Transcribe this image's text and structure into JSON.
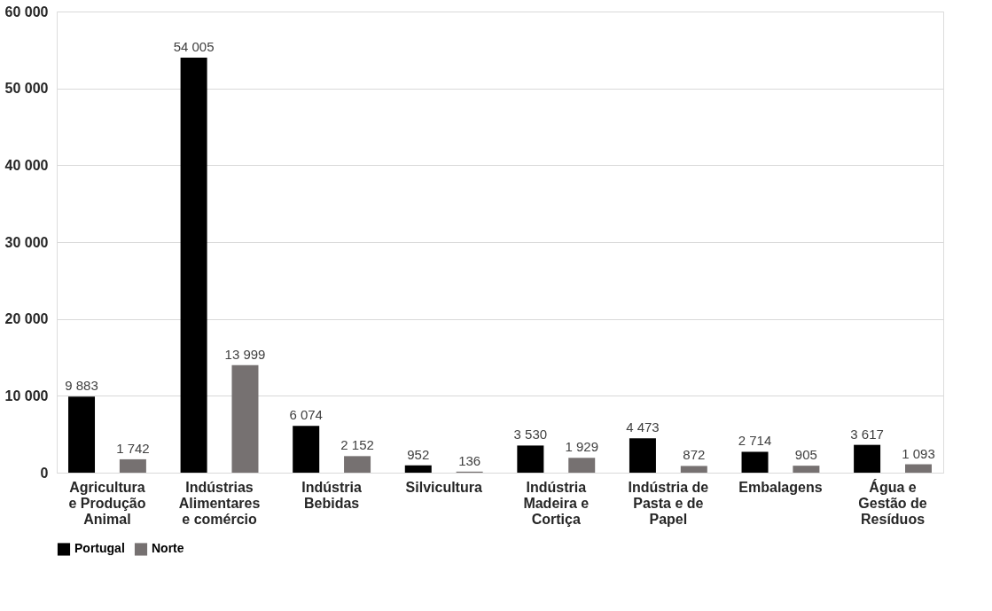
{
  "chart_data": {
    "type": "bar",
    "categories": [
      "Agricultura e Produção Animal",
      "Indústrias Alimentares e comércio",
      "Indústria Bebidas",
      "Silvicultura",
      "Indústria Madeira e Cortiça",
      "Indústria de Pasta e de Papel",
      "Embalagens",
      "Água e Gestão de Resíduos"
    ],
    "series": [
      {
        "name": "Portugal",
        "color": "#000000",
        "values": [
          9883,
          54005,
          6074,
          952,
          3530,
          4473,
          2714,
          3617
        ],
        "value_labels": [
          "9 883",
          "54 005",
          "6 074",
          "952",
          "3 530",
          "4 473",
          "2 714",
          "3 617"
        ]
      },
      {
        "name": "Norte",
        "color": "#767171",
        "values": [
          1742,
          13999,
          2152,
          136,
          1929,
          872,
          905,
          1093
        ],
        "value_labels": [
          "1 742",
          "13 999",
          "2 152",
          "136",
          "1 929",
          "872",
          "905",
          "1 093"
        ]
      }
    ],
    "ylim": [
      0,
      60000
    ],
    "yticks": [
      {
        "value": 0,
        "label": "0"
      },
      {
        "value": 10000,
        "label": "10 000"
      },
      {
        "value": 20000,
        "label": "20 000"
      },
      {
        "value": 30000,
        "label": "30 000"
      },
      {
        "value": 40000,
        "label": "40 000"
      },
      {
        "value": 50000,
        "label": "50 000"
      },
      {
        "value": 60000,
        "label": "60 000"
      }
    ],
    "grid": "y",
    "legend": "bottom"
  }
}
